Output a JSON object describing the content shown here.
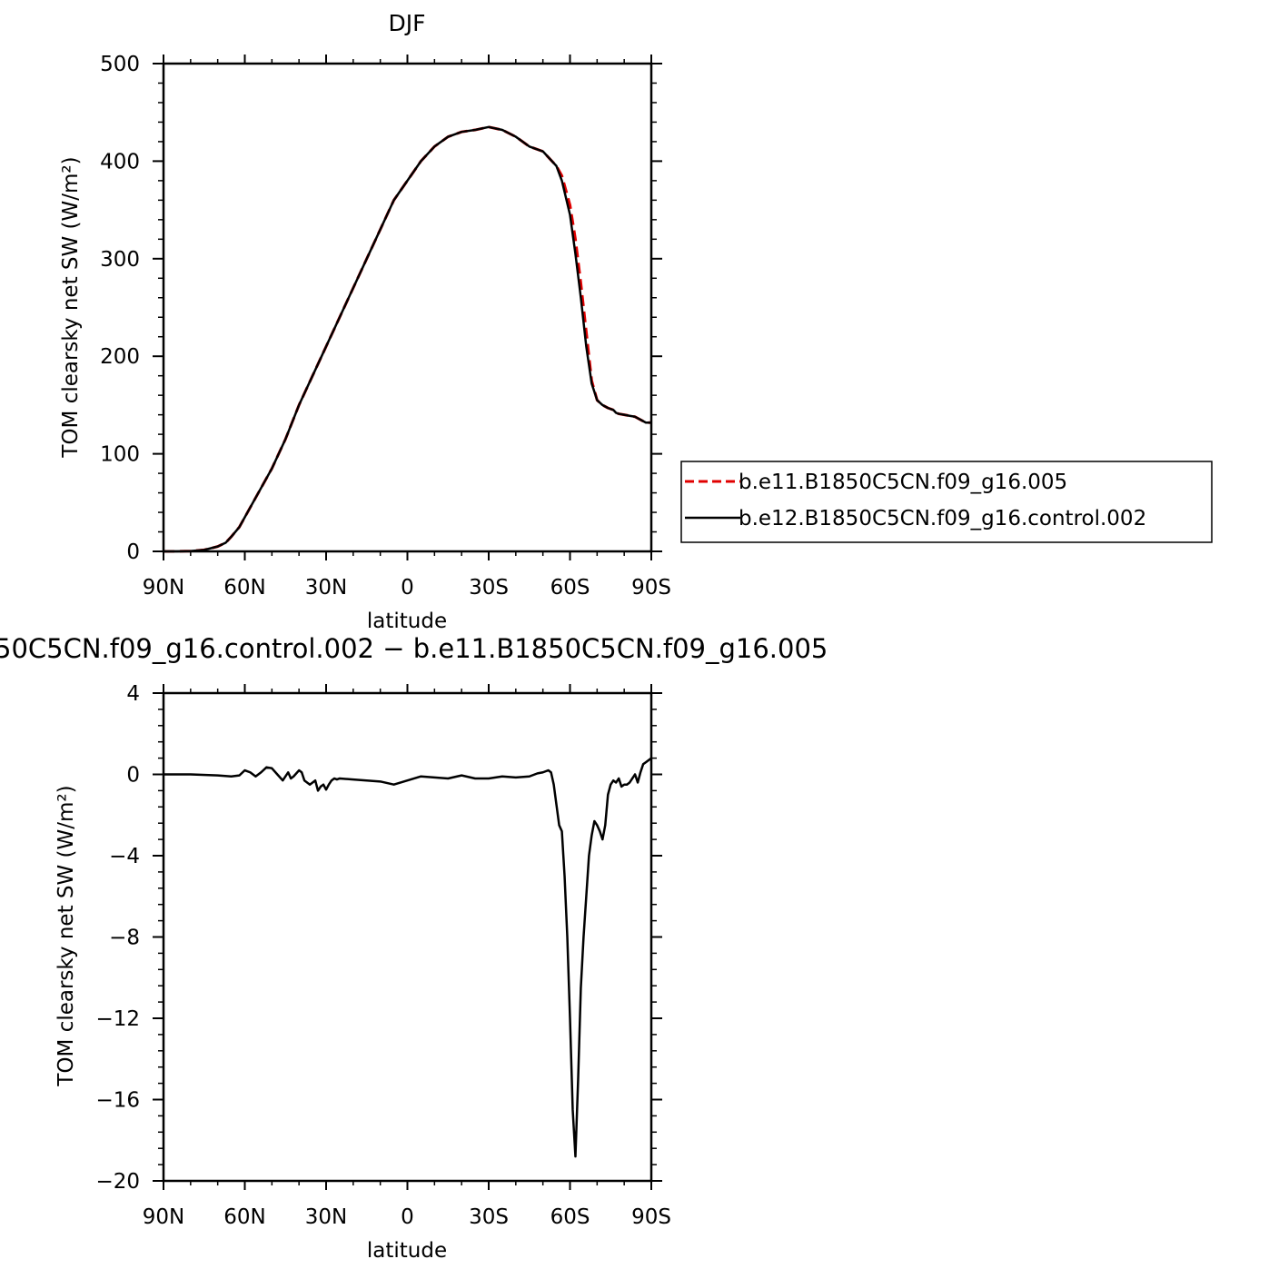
{
  "colors": {
    "red_series": "#e00000",
    "black_series": "#000000"
  },
  "legend": {
    "items": [
      {
        "label": "b.e11.B1850C5CN.f09_g16.005",
        "style": "dashed",
        "color": "#e00000"
      },
      {
        "label": "b.e12.B1850C5CN.f09_g16.control.002",
        "style": "solid",
        "color": "#000000"
      }
    ]
  },
  "chart_data": [
    {
      "type": "line",
      "title": "DJF",
      "xlabel": "latitude",
      "ylabel": "TOM clearsky net SW (W/m²)",
      "xlim": [
        -90,
        90
      ],
      "ylim": [
        0,
        500
      ],
      "x_ticks": [
        {
          "value": -90,
          "label": "90N"
        },
        {
          "value": -60,
          "label": "60N"
        },
        {
          "value": -30,
          "label": "30N"
        },
        {
          "value": 0,
          "label": "0"
        },
        {
          "value": 30,
          "label": "30S"
        },
        {
          "value": 60,
          "label": "60S"
        },
        {
          "value": 90,
          "label": "90S"
        }
      ],
      "y_ticks": [
        {
          "value": 0,
          "label": "0"
        },
        {
          "value": 100,
          "label": "100"
        },
        {
          "value": 200,
          "label": "200"
        },
        {
          "value": 300,
          "label": "300"
        },
        {
          "value": 400,
          "label": "400"
        },
        {
          "value": 500,
          "label": "500"
        }
      ],
      "series": [
        {
          "name": "b.e11.B1850C5CN.f09_g16.005",
          "color": "#e00000",
          "style": "dashed",
          "x": [
            -90,
            -85,
            -80,
            -75,
            -70,
            -67,
            -65,
            -62,
            -60,
            -55,
            -50,
            -45,
            -40,
            -35,
            -30,
            -25,
            -20,
            -15,
            -10,
            -5,
            0,
            5,
            10,
            15,
            20,
            25,
            30,
            35,
            40,
            45,
            50,
            55,
            57,
            60,
            62,
            64,
            66,
            68,
            70,
            72,
            74,
            76,
            77,
            78,
            80,
            82,
            84,
            86,
            88,
            90
          ],
          "y": [
            0,
            0,
            0.3,
            1.5,
            5,
            9,
            15,
            25,
            35,
            60,
            85,
            115,
            150,
            180,
            210,
            240,
            270,
            300,
            330,
            360,
            380,
            400,
            415,
            425,
            430,
            432,
            435,
            432,
            425,
            415,
            410,
            395,
            385,
            355,
            320,
            275,
            225,
            175,
            155,
            150,
            147,
            145,
            142,
            141,
            140,
            139,
            138,
            135,
            132,
            132
          ]
        },
        {
          "name": "b.e12.B1850C5CN.f09_g16.control.002",
          "color": "#000000",
          "style": "solid",
          "x": [
            -90,
            -85,
            -80,
            -75,
            -70,
            -67,
            -65,
            -62,
            -60,
            -55,
            -50,
            -45,
            -40,
            -35,
            -30,
            -25,
            -20,
            -15,
            -10,
            -5,
            0,
            5,
            10,
            15,
            20,
            25,
            30,
            35,
            40,
            45,
            50,
            55,
            57,
            60,
            62,
            64,
            66,
            68,
            70,
            72,
            74,
            76,
            77,
            78,
            80,
            82,
            84,
            86,
            88,
            90
          ],
          "y": [
            0,
            0,
            0.3,
            1.5,
            5,
            9,
            15,
            25,
            35,
            60,
            85,
            115,
            150,
            180,
            210,
            240,
            270,
            300,
            330,
            360,
            380,
            400,
            415,
            425,
            430,
            432,
            435,
            432,
            425,
            415,
            410,
            395,
            380,
            345,
            305,
            260,
            210,
            172,
            155,
            150,
            147,
            145,
            142,
            141,
            140,
            139,
            138,
            135,
            132,
            132
          ]
        }
      ]
    },
    {
      "type": "line",
      "title": "50C5CN.f09_g16.control.002 − b.e11.B1850C5CN.f09_g16.005",
      "xlabel": "latitude",
      "ylabel": "TOM clearsky net SW (W/m²)",
      "xlim": [
        -90,
        90
      ],
      "ylim": [
        -20,
        4
      ],
      "x_ticks": [
        {
          "value": -90,
          "label": "90N"
        },
        {
          "value": -60,
          "label": "60N"
        },
        {
          "value": -30,
          "label": "30N"
        },
        {
          "value": 0,
          "label": "0"
        },
        {
          "value": 30,
          "label": "30S"
        },
        {
          "value": 60,
          "label": "60S"
        },
        {
          "value": 90,
          "label": "90S"
        }
      ],
      "y_ticks": [
        {
          "value": 4,
          "label": "4"
        },
        {
          "value": 0,
          "label": "0"
        },
        {
          "value": -4,
          "label": "−4"
        },
        {
          "value": -8,
          "label": "−8"
        },
        {
          "value": -12,
          "label": "−12"
        },
        {
          "value": -16,
          "label": "−16"
        },
        {
          "value": -20,
          "label": "−20"
        }
      ],
      "series": [
        {
          "name": "difference",
          "color": "#000000",
          "style": "solid",
          "x": [
            -90,
            -80,
            -70,
            -65,
            -62,
            -60,
            -58,
            -56,
            -54,
            -52,
            -50,
            -48,
            -46,
            -45,
            -44,
            -43,
            -42,
            -40,
            -39,
            -38,
            -36,
            -34,
            -33,
            -32,
            -31,
            -30,
            -29,
            -28,
            -27,
            -26,
            -25,
            -20,
            -15,
            -10,
            -5,
            0,
            5,
            10,
            15,
            20,
            25,
            30,
            35,
            40,
            45,
            48,
            50,
            51,
            52,
            53,
            54,
            55,
            56,
            57,
            58,
            59,
            60,
            61,
            62,
            63,
            64,
            65,
            66,
            67,
            68,
            69,
            70,
            71,
            72,
            73,
            74,
            75,
            76,
            77,
            78,
            79,
            80,
            81,
            82,
            83,
            84,
            85,
            86,
            87,
            88,
            89,
            90
          ],
          "y": [
            0,
            0,
            -0.05,
            -0.1,
            -0.05,
            0.2,
            0.1,
            -0.1,
            0.1,
            0.35,
            0.3,
            0,
            -0.3,
            -0.1,
            0.1,
            -0.2,
            -0.1,
            0.2,
            0.1,
            -0.3,
            -0.5,
            -0.3,
            -0.8,
            -0.6,
            -0.5,
            -0.75,
            -0.5,
            -0.3,
            -0.2,
            -0.25,
            -0.2,
            -0.25,
            -0.3,
            -0.35,
            -0.5,
            -0.3,
            -0.1,
            -0.15,
            -0.2,
            -0.05,
            -0.2,
            -0.2,
            -0.1,
            -0.15,
            -0.1,
            0.05,
            0.1,
            0.15,
            0.2,
            0.1,
            -0.5,
            -1.5,
            -2.5,
            -2.8,
            -5,
            -8,
            -12,
            -16.5,
            -18.8,
            -15,
            -10.5,
            -8,
            -6,
            -4,
            -3,
            -2.3,
            -2.5,
            -2.8,
            -3.2,
            -2.5,
            -1,
            -0.5,
            -0.3,
            -0.4,
            -0.2,
            -0.6,
            -0.5,
            -0.5,
            -0.4,
            -0.2,
            0,
            -0.4,
            0.1,
            0.5,
            0.6,
            0.7,
            0.8
          ]
        }
      ]
    }
  ]
}
